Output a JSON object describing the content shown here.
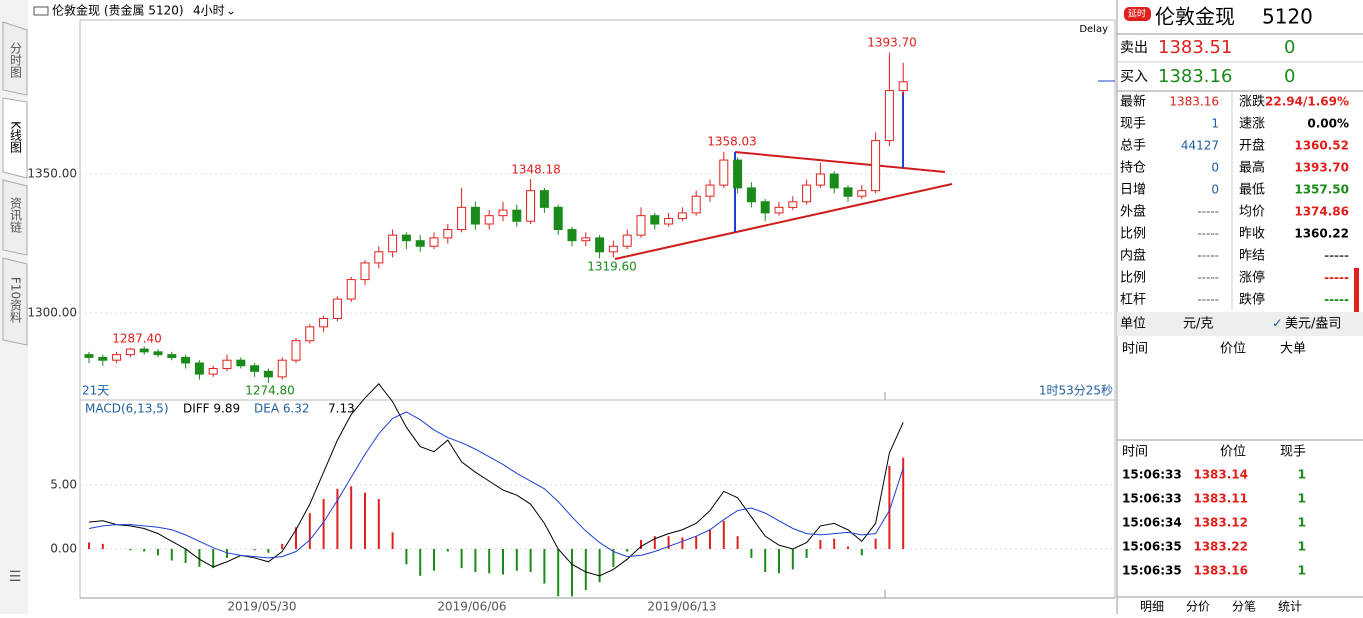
{
  "toolbar": {
    "title": "伦敦金现 (贵金属 5120)",
    "period": "4小时"
  },
  "tabs": [
    "分时图",
    "K线图",
    "资讯链",
    "F10资料"
  ],
  "chart_data": {
    "type": "candlestick",
    "delay": "Delay",
    "range_label": "21天",
    "countdown": "1时53分25秒",
    "dates": [
      "2019/05/30",
      "2019/06/06",
      "2019/06/13"
    ],
    "ylim": [
      1269.4,
      1405.4
    ],
    "yticks": [
      {
        "value": 1300,
        "label": "1300.00"
      },
      {
        "value": 1350,
        "label": "1350.00"
      }
    ],
    "colors": {
      "up": "#e0201c",
      "down": "#1a8a1a"
    },
    "annotations": [
      "1287.40",
      "1274.80",
      "1348.18",
      "1319.60",
      "1358.03",
      "1393.70"
    ],
    "candles": [
      [
        1285,
        1286,
        1282,
        1284
      ],
      [
        1284,
        1285,
        1281,
        1283
      ],
      [
        1283,
        1286,
        1282,
        1285
      ],
      [
        1285,
        1287.4,
        1284,
        1287
      ],
      [
        1287,
        1288,
        1285,
        1286
      ],
      [
        1286,
        1287,
        1284,
        1285
      ],
      [
        1285,
        1286,
        1283,
        1284
      ],
      [
        1284,
        1285,
        1280,
        1282
      ],
      [
        1282,
        1283,
        1276,
        1278
      ],
      [
        1278,
        1281,
        1277,
        1280
      ],
      [
        1280,
        1285,
        1279,
        1283
      ],
      [
        1283,
        1284,
        1280,
        1281
      ],
      [
        1281,
        1282,
        1277,
        1279
      ],
      [
        1279,
        1280,
        1274.8,
        1277
      ],
      [
        1277,
        1284,
        1276,
        1283
      ],
      [
        1283,
        1291,
        1282,
        1290
      ],
      [
        1290,
        1296,
        1289,
        1295
      ],
      [
        1295,
        1299,
        1293,
        1298
      ],
      [
        1298,
        1306,
        1297,
        1305
      ],
      [
        1305,
        1313,
        1304,
        1312
      ],
      [
        1312,
        1319,
        1310,
        1318
      ],
      [
        1318,
        1324,
        1316,
        1322
      ],
      [
        1322,
        1330,
        1320,
        1328
      ],
      [
        1328,
        1329,
        1323,
        1326
      ],
      [
        1326,
        1328,
        1322,
        1324
      ],
      [
        1324,
        1329,
        1323,
        1327
      ],
      [
        1327,
        1332,
        1325,
        1330
      ],
      [
        1330,
        1345,
        1329,
        1338
      ],
      [
        1338,
        1340,
        1330,
        1332
      ],
      [
        1332,
        1337,
        1330,
        1335
      ],
      [
        1335,
        1340,
        1333,
        1337
      ],
      [
        1337,
        1339,
        1331,
        1333
      ],
      [
        1333,
        1348.18,
        1332,
        1344
      ],
      [
        1344,
        1345,
        1336,
        1338
      ],
      [
        1338,
        1339,
        1328,
        1330
      ],
      [
        1330,
        1331,
        1324,
        1326
      ],
      [
        1326,
        1329,
        1324,
        1327
      ],
      [
        1327,
        1328,
        1319.6,
        1322
      ],
      [
        1322,
        1326,
        1320,
        1324
      ],
      [
        1324,
        1330,
        1323,
        1328
      ],
      [
        1328,
        1338,
        1327,
        1335
      ],
      [
        1335,
        1336,
        1330,
        1332
      ],
      [
        1332,
        1336,
        1331,
        1334
      ],
      [
        1334,
        1338,
        1333,
        1336
      ],
      [
        1336,
        1344,
        1335,
        1342
      ],
      [
        1342,
        1348,
        1340,
        1346
      ],
      [
        1346,
        1358.03,
        1345,
        1355
      ],
      [
        1355,
        1356,
        1343,
        1345
      ],
      [
        1345,
        1347,
        1338,
        1340
      ],
      [
        1340,
        1341,
        1333,
        1336
      ],
      [
        1336,
        1340,
        1335,
        1338
      ],
      [
        1338,
        1342,
        1337,
        1340
      ],
      [
        1340,
        1348,
        1339,
        1346
      ],
      [
        1346,
        1354,
        1345,
        1350
      ],
      [
        1350,
        1351,
        1343,
        1345
      ],
      [
        1345,
        1346,
        1340,
        1342
      ],
      [
        1342,
        1346,
        1341,
        1344
      ],
      [
        1344,
        1365,
        1343,
        1362
      ],
      [
        1362,
        1393.7,
        1360,
        1380
      ],
      [
        1380,
        1390,
        1378,
        1383.16
      ]
    ],
    "macd": {
      "title": "MACD(6,13,5)",
      "diff_label": "DIFF 9.89",
      "dea_label": "DEA 6.32",
      "macd_label": "7.13",
      "ylim": [
        -3.83,
        11.48
      ],
      "yticks": [
        {
          "value": 0,
          "label": "0.00"
        },
        {
          "value": 5,
          "label": "5.00"
        }
      ],
      "diff_color": "#000000",
      "dea_color": "#1f3fd0",
      "diff": [
        2.1,
        2.2,
        1.9,
        1.8,
        1.6,
        1.2,
        0.6,
        0,
        -0.8,
        -1.4,
        -1.0,
        -0.5,
        -0.7,
        -1.0,
        -0.2,
        1.5,
        3.5,
        6,
        8.5,
        10.5,
        11.8,
        12.9,
        11.5,
        9.5,
        8,
        7.6,
        8.5,
        6.8,
        6.0,
        5.3,
        4.6,
        4.2,
        3.5,
        2.0,
        0,
        -1.2,
        -1.8,
        -2.1,
        -1.6,
        -0.8,
        0.2,
        0.8,
        1.2,
        1.5,
        2.0,
        3.0,
        4.5,
        4.0,
        2.5,
        1.0,
        0.3,
        0,
        0.5,
        1.8,
        2.0,
        1.5,
        0.6,
        2.0,
        7.5,
        9.89
      ],
      "dea": [
        1.6,
        1.8,
        1.9,
        1.9,
        1.8,
        1.7,
        1.5,
        1.1,
        0.6,
        0.1,
        -0.3,
        -0.5,
        -0.6,
        -0.7,
        -0.6,
        -0.2,
        0.7,
        2.1,
        3.8,
        5.6,
        7.4,
        9.0,
        10.2,
        10.7,
        10.1,
        9.3,
        8.7,
        8.3,
        7.8,
        7.2,
        6.6,
        5.9,
        5.3,
        4.7,
        3.7,
        2.5,
        1.4,
        0.5,
        -0.2,
        -0.6,
        -0.5,
        -0.2,
        0.2,
        0.6,
        1.0,
        1.5,
        2.3,
        3.0,
        3.2,
        2.8,
        2.2,
        1.6,
        1.2,
        1.1,
        1.2,
        1.3,
        1.1,
        1.2,
        3.0,
        6.32
      ],
      "hist": [
        0.5,
        0.4,
        0,
        -0.1,
        -0.2,
        -0.5,
        -0.9,
        -1.1,
        -1.4,
        -1.5,
        -0.7,
        0,
        -0.1,
        -0.3,
        0.4,
        1.7,
        2.8,
        3.9,
        4.7,
        4.9,
        4.4,
        3.9,
        1.3,
        -1.2,
        -2.1,
        -1.7,
        -0.2,
        -1.5,
        -1.8,
        -1.9,
        -2.0,
        -1.7,
        -1.8,
        -2.7,
        -3.7,
        -3.7,
        -3.2,
        -2.6,
        -1.4,
        -0.2,
        0.7,
        1.0,
        1.0,
        0.9,
        1.0,
        1.5,
        2.2,
        1.0,
        -0.7,
        -1.8,
        -1.9,
        -1.6,
        -0.7,
        0.7,
        0.8,
        0.2,
        -0.5,
        0.8,
        6.5,
        7.13
      ]
    }
  },
  "quote": {
    "badge": "延时",
    "name": "伦敦金现",
    "code": "5120",
    "sell": {
      "label": "卖出",
      "price": "1383.51",
      "qty": "0"
    },
    "buy": {
      "label": "买入",
      "price": "1383.16",
      "qty": "0"
    },
    "stats": [
      [
        "最新",
        "1383.16",
        "涨跌",
        "22.94/1.69%"
      ],
      [
        "现手",
        "1",
        "速涨",
        "0.00%"
      ],
      [
        "总手",
        "44127",
        "开盘",
        "1360.52"
      ],
      [
        "持仓",
        "0",
        "最高",
        "1393.70"
      ],
      [
        "日增",
        "0",
        "最低",
        "1357.50"
      ],
      [
        "外盘",
        "-----",
        "均价",
        "1374.86"
      ],
      [
        "比例",
        "-----",
        "昨收",
        "1360.22"
      ],
      [
        "内盘",
        "-----",
        "昨结",
        "-----"
      ],
      [
        "比例",
        "-----",
        "涨停",
        "-----"
      ],
      [
        "杠杆",
        "-----",
        "跌停",
        "-----"
      ]
    ],
    "unit": {
      "label": "单位",
      "option1": "元/克",
      "option2": "美元/盎司"
    },
    "big_header": [
      "时间",
      "价位",
      "大单"
    ],
    "trades_header": [
      "时间",
      "价位",
      "现手"
    ],
    "trades": [
      [
        "15:06:33",
        "1383.14",
        "1"
      ],
      [
        "15:06:33",
        "1383.11",
        "1"
      ],
      [
        "15:06:34",
        "1383.12",
        "1"
      ],
      [
        "15:06:35",
        "1383.22",
        "1"
      ],
      [
        "15:06:35",
        "1383.16",
        "1"
      ]
    ],
    "bottom_tabs": [
      "明细",
      "分价",
      "分笔",
      "统计"
    ]
  }
}
